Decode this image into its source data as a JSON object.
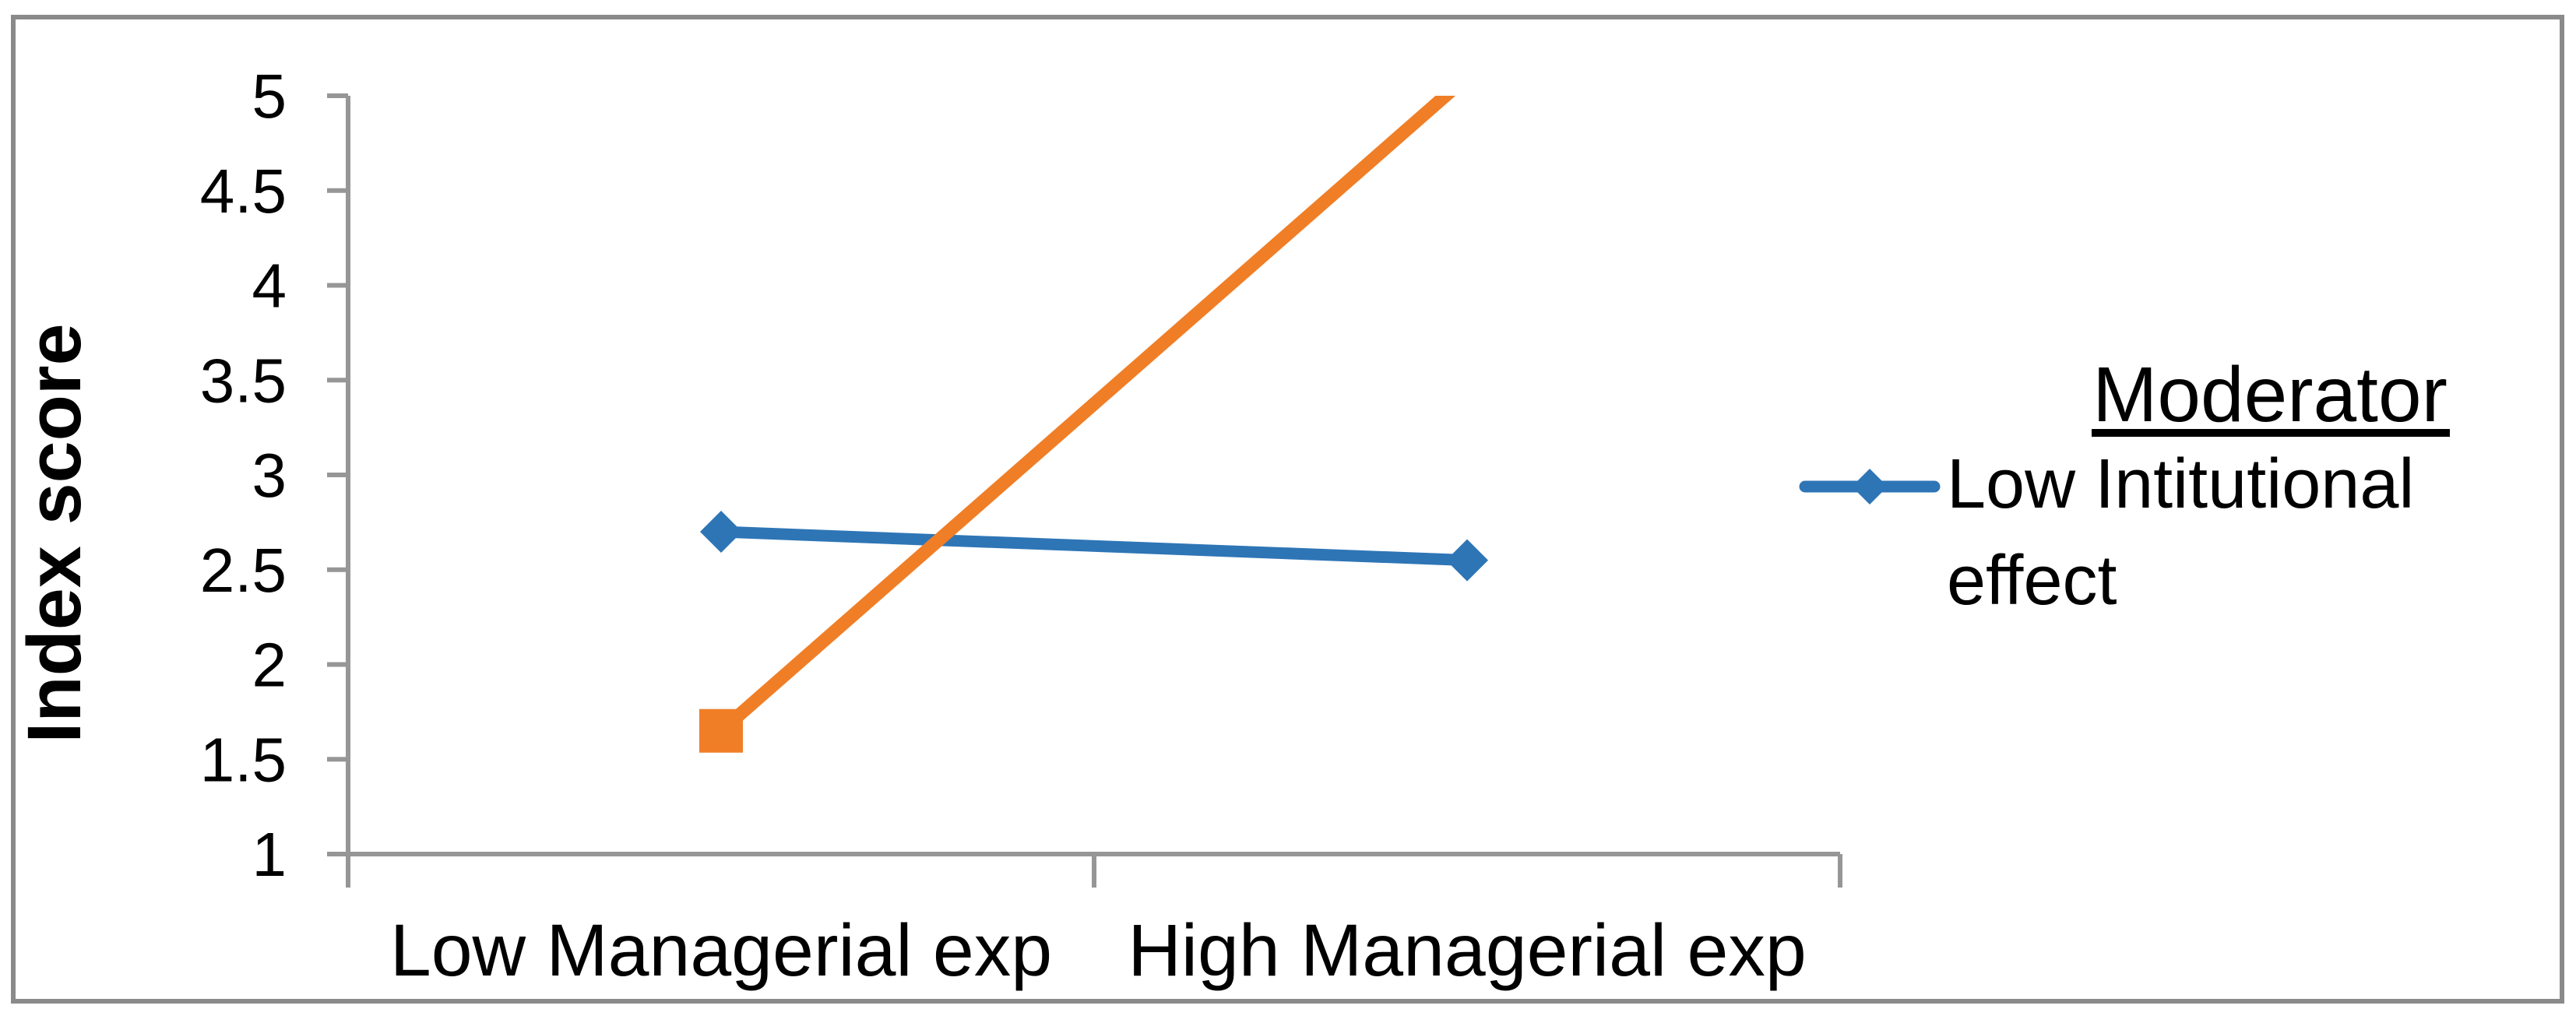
{
  "figure": {
    "background": "#FFFFFF",
    "border_color": "#8A8A8A",
    "axis_color": "#969696",
    "text_color": "#000000"
  },
  "chart_data": {
    "type": "line",
    "title": "",
    "xlabel": "",
    "ylabel": "Index score",
    "categories": [
      "Low Managerial exp",
      "High Managerial exp"
    ],
    "series": [
      {
        "name": "Low Intitutional effect",
        "color": "#2E75B6",
        "marker": "diamond",
        "values": [
          2.7,
          2.55
        ]
      },
      {
        "name": "",
        "color": "#F07E26",
        "marker": "square",
        "values": [
          1.65,
          5.1
        ]
      }
    ],
    "ylim": [
      1,
      5
    ],
    "ytick_step": 0.5,
    "yticks": [
      "5",
      "4.5",
      "4",
      "3.5",
      "3",
      "2.5",
      "2",
      "1.5",
      "1"
    ],
    "grid": false,
    "clip_to_ylim": true,
    "legend": {
      "title": "Moderator",
      "title_underlined": true,
      "position": "right",
      "entries": [
        {
          "label": "Low Intitutional effect",
          "lines": [
            "Low Intitutional",
            "effect"
          ],
          "series_index": 0
        }
      ]
    }
  }
}
